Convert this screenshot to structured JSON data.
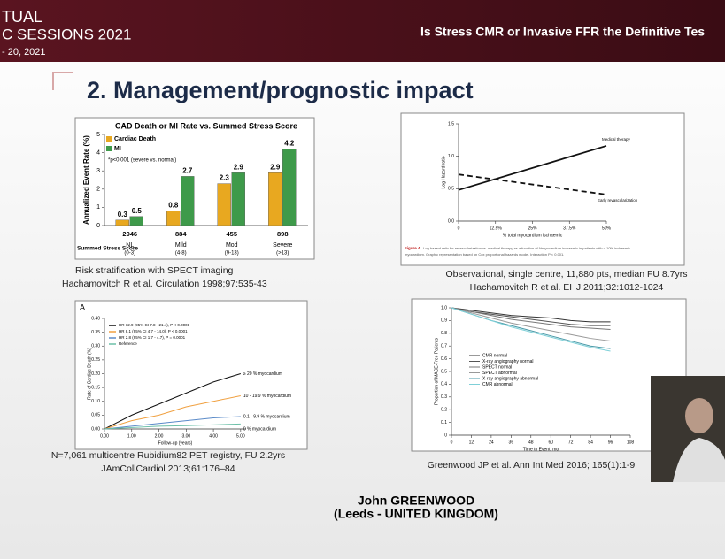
{
  "header": {
    "event_lines": [
      "TUAL",
      "C SESSIONS 2021",
      "- 20, 2021"
    ],
    "title": "Is Stress CMR or Invasive FFR the Definitive Tes"
  },
  "slide": {
    "title": "2. Management/prognostic impact",
    "panels": [
      {
        "type": "bar",
        "title": "CAD Death or MI Rate vs. Summed Stress Score",
        "y_label": "Annualized Event Rate (%)",
        "ylim": [
          0,
          5
        ],
        "yticks": [
          0,
          1,
          2,
          3,
          4,
          5
        ],
        "note": "*p<0.001 (severe vs. normal)",
        "row_label": "Summed Stress Score",
        "categories": [
          "NL",
          "Mild",
          "Mod",
          "Severe"
        ],
        "ranges": [
          "(0-3)",
          "(4-8)",
          "(9-13)",
          "(>13)"
        ],
        "counts": [
          "2946",
          "884",
          "455",
          "898"
        ],
        "series": [
          {
            "name": "Cardiac Death",
            "color": "#e8a820",
            "values": [
              0.3,
              0.8,
              2.3,
              2.9
            ]
          },
          {
            "name": "MI",
            "color": "#3e9a4a",
            "values": [
              0.5,
              2.7,
              2.9,
              4.2
            ]
          }
        ],
        "caption": [
          "Risk stratification with SPECT imaging",
          "Hachamovitch R et al. Circulation 1998;97:535-43"
        ]
      },
      {
        "type": "line",
        "y_label": "Log Hazard ratio",
        "x_label": "% total myocardium ischaemic",
        "xlim": [
          0,
          50
        ],
        "ylim": [
          0,
          1.5
        ],
        "xticks": [
          0,
          {
            "value": 12.5,
            "label": "12.5%"
          },
          {
            "value": 25,
            "label": "25%"
          },
          {
            "value": 37.5,
            "label": "37.5%"
          },
          {
            "value": 50,
            "label": "50%"
          }
        ],
        "yticks": [
          {
            "value": 0,
            "label": "0.0"
          },
          0.5,
          {
            "value": 1,
            "label": "1.0"
          },
          {
            "value": 1.5,
            "label": "1.5"
          }
        ],
        "x": [
          0,
          50
        ],
        "series": [
          {
            "name": "Medical therapy",
            "color": "#111111",
            "dash": false,
            "values": [
              0.48,
              1.16
            ]
          },
          {
            "name": "Early revascularization",
            "color": "#111111",
            "dash": true,
            "values": [
              0.72,
              0.41
            ]
          }
        ],
        "figure_label": "Figure 4",
        "figure_caption": [
          "Log hazard ratio for revascularization vs. medical therapy as a function of %myocardium ischaemic in patients with < 10% ischaemic",
          "myocardium. Graphic representation based on Cox proportional hazards model. Interaction P < 0.001."
        ],
        "caption": [
          "Observational, single centre, 11,880 pts, median FU 8.7yrs",
          "Hachamovitch R et al. EHJ 2011;32:1012-1024"
        ]
      },
      {
        "type": "line",
        "panel_label": "A",
        "y_label": "Rate of Cardiac Death (%)",
        "x_label": "Follow-up (years)",
        "xlim": [
          0,
          5.2
        ],
        "ylim": [
          0,
          0.4
        ],
        "xticks": [
          {
            "value": 0,
            "label": "0.00"
          },
          {
            "value": 1,
            "label": "1.00"
          },
          {
            "value": 2,
            "label": "2.00"
          },
          {
            "value": 3,
            "label": "3.00"
          },
          {
            "value": 4,
            "label": "4.00"
          },
          {
            "value": 5,
            "label": "5.00"
          }
        ],
        "yticks": [
          {
            "value": 0,
            "label": "0.00"
          },
          0.05,
          {
            "value": 0.1,
            "label": "0.10"
          },
          0.15,
          {
            "value": 0.2,
            "label": "0.20"
          },
          0.25,
          {
            "value": 0.3,
            "label": "0.30"
          },
          0.35,
          {
            "value": 0.4,
            "label": "0.40"
          }
        ],
        "x": [
          0,
          1,
          2,
          3,
          4,
          5
        ],
        "series": [
          {
            "name": "HR 12.9 (95% CI 7.8 - 21.4), P < 0.0001",
            "label": "≥ 20 % myocardium",
            "color": "#111111",
            "values": [
              0,
              0.05,
              0.09,
              0.13,
              0.17,
              0.2
            ]
          },
          {
            "name": "HR 8.1 (95% CI 4.7 - 14.0), P < 0.0001",
            "label": "10 - 19.9 % myocardium",
            "color": "#f0a040",
            "values": [
              0,
              0.03,
              0.05,
              0.08,
              0.1,
              0.12
            ]
          },
          {
            "name": "HR 2.8 (95% CI 1.7 - 4.7), P = 0.0001",
            "label": "0.1 - 9.9 % myocardium",
            "color": "#5a8ac8",
            "values": [
              0,
              0.01,
              0.02,
              0.03,
              0.04,
              0.045
            ]
          },
          {
            "name": "Reference",
            "label": "0 % myocardium",
            "color": "#6cc0a8",
            "values": [
              0,
              0.005,
              0.01,
              0.012,
              0.015,
              0.018
            ]
          }
        ],
        "caption": [
          "N=7,061 multicentre Rubidium82 PET registry, FU 2.2yrs",
          "JAmCollCardiol 2013;61:176–84"
        ]
      },
      {
        "type": "line",
        "y_label": "Proportion of MACE-Free Patients",
        "x_label": "Time to Event, mo",
        "xlim": [
          0,
          108
        ],
        "ylim": [
          0,
          1
        ],
        "xticks": [
          0,
          12,
          24,
          36,
          48,
          60,
          72,
          84,
          96,
          108
        ],
        "yticks": [
          0,
          0.1,
          0.2,
          0.3,
          0.4,
          0.5,
          0.6,
          0.7,
          0.8,
          0.9,
          {
            "value": 1,
            "label": "1.0"
          }
        ],
        "x": [
          0,
          12,
          24,
          36,
          48,
          60,
          72,
          84,
          96
        ],
        "series": [
          {
            "name": "CMR normal",
            "color": "#333333",
            "values": [
              1,
              0.98,
              0.96,
              0.94,
              0.93,
              0.92,
              0.9,
              0.89,
              0.89
            ]
          },
          {
            "name": "X-ray angiography normal",
            "color": "#555555",
            "values": [
              1,
              0.97,
              0.95,
              0.93,
              0.91,
              0.89,
              0.87,
              0.86,
              0.86
            ]
          },
          {
            "name": "SPECT normal",
            "color": "#777777",
            "values": [
              1,
              0.97,
              0.94,
              0.91,
              0.89,
              0.87,
              0.85,
              0.84,
              0.83
            ]
          },
          {
            "name": "SPECT abnormal",
            "color": "#999999",
            "values": [
              1,
              0.96,
              0.92,
              0.88,
              0.85,
              0.82,
              0.79,
              0.76,
              0.74
            ]
          },
          {
            "name": "X-ray angiography abnormal",
            "color": "#4a9aa8",
            "values": [
              1,
              0.95,
              0.9,
              0.86,
              0.82,
              0.78,
              0.74,
              0.7,
              0.68
            ]
          },
          {
            "name": "CMR abnormal",
            "color": "#7fd0d8",
            "values": [
              1,
              0.95,
              0.9,
              0.85,
              0.81,
              0.77,
              0.73,
              0.69,
              0.66
            ]
          }
        ],
        "caption": [
          "Greenwood JP et al. Ann Int Med 2016; 165(1):1-9"
        ]
      }
    ]
  },
  "speaker": {
    "name": "John GREENWOOD",
    "affiliation": "(Leeds - UNITED KINGDOM)"
  }
}
